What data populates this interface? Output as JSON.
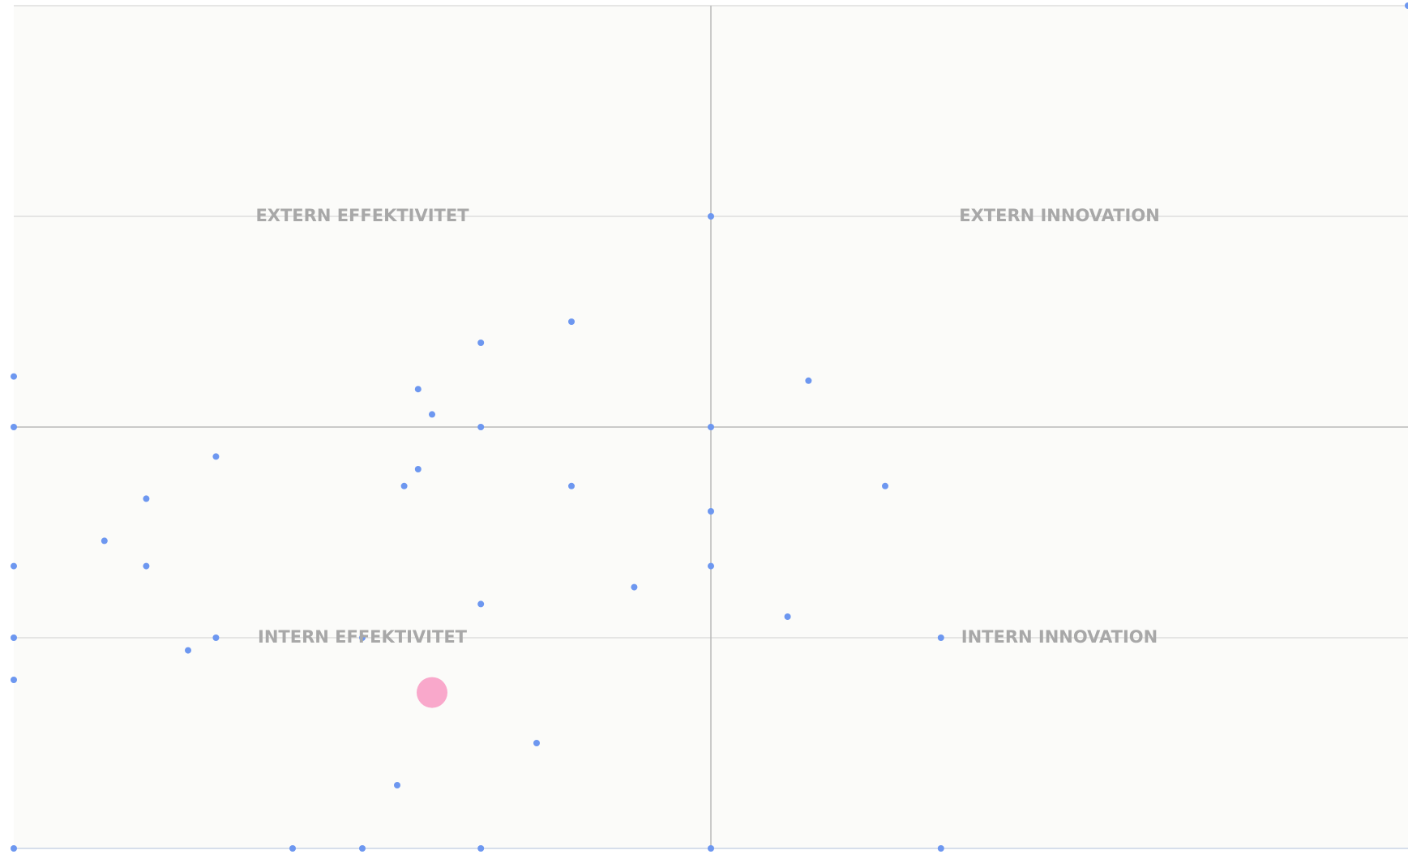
{
  "chart_data": {
    "type": "scatter",
    "annotations": [
      "EXTERN EFFEKTIVITET",
      "EXTERN INNOVATION",
      "INTERN EFFEKTIVITET",
      "INTERN INNOVATION"
    ],
    "xlim": [
      0,
      2
    ],
    "ylim": [
      0,
      4
    ],
    "xticks": [
      0,
      1,
      2
    ],
    "yticks": [
      0,
      1,
      2,
      3,
      4
    ],
    "grid": true,
    "series": [
      {
        "color": "#6d97f0",
        "size": 4,
        "x": [
          1,
          0.8,
          0.67,
          0,
          0.58,
          1.14,
          0.6,
          0,
          0.67,
          1,
          0.29,
          0.58,
          0.56,
          0.8,
          1.25,
          0.19,
          1,
          0.13,
          0,
          0.19,
          1,
          0.89,
          0.67,
          1.11,
          0,
          0.29,
          0.5,
          1.33,
          0.25,
          0,
          0.75,
          0.55,
          0,
          0.4,
          0.5,
          0.67,
          1,
          1.33,
          2
        ],
        "values": [
          3,
          2.5,
          2.4,
          2.24,
          2.18,
          2.22,
          2.06,
          2,
          2,
          2,
          1.86,
          1.8,
          1.72,
          1.72,
          1.72,
          1.66,
          1.6,
          1.46,
          1.34,
          1.34,
          1.34,
          1.24,
          1.16,
          1.1,
          1,
          1,
          1,
          1,
          0.94,
          0.8,
          0.5,
          0.3,
          0,
          0,
          0,
          0,
          0,
          0,
          4
        ]
      },
      {
        "color": "#f9a8cb",
        "size": 19,
        "x": [
          0.6
        ],
        "values": [
          0.74
        ]
      }
    ]
  }
}
